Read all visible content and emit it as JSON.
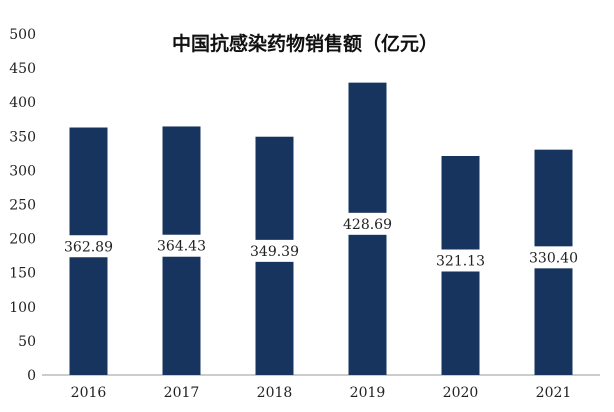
{
  "chart_data": {
    "type": "bar",
    "title": "中国抗感染药物销售额（亿元）",
    "xlabel": "",
    "ylabel": "",
    "categories": [
      "2016",
      "2017",
      "2018",
      "2019",
      "2020",
      "2021"
    ],
    "values": [
      362.89,
      364.43,
      349.39,
      428.69,
      321.13,
      330.4
    ],
    "value_labels": [
      "362.89",
      "364.43",
      "349.39",
      "428.69",
      "321.13",
      "330.40"
    ],
    "ylim": [
      0,
      500
    ],
    "yticks": [
      0,
      50,
      100,
      150,
      200,
      250,
      300,
      350,
      400,
      450,
      500
    ],
    "grid": false,
    "legend": "none",
    "bar_color": "#17345e",
    "label_box_color": "#ffffff"
  }
}
